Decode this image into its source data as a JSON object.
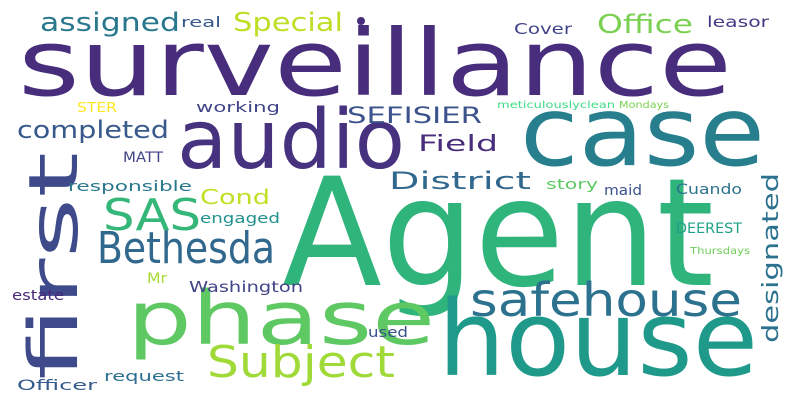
{
  "words": [
    {
      "text": "surveillance",
      "color": "#472d7b"
    },
    {
      "text": "Agent",
      "color": "#2fb47c"
    },
    {
      "text": "case",
      "color": "#277f8e"
    },
    {
      "text": "house",
      "color": "#1f9a8a"
    },
    {
      "text": "audio",
      "color": "#46327e"
    },
    {
      "text": "phase",
      "color": "#5ec962"
    },
    {
      "text": "first",
      "color": "#3e4a89"
    },
    {
      "text": "safehouse",
      "color": "#2c728e"
    },
    {
      "text": "Bethesda",
      "color": "#31688e"
    },
    {
      "text": "Subject",
      "color": "#a0da39"
    },
    {
      "text": "SAS",
      "color": "#35b779"
    },
    {
      "text": "assigned",
      "color": "#2a788e"
    },
    {
      "text": "Special",
      "color": "#bddf26"
    },
    {
      "text": "Office",
      "color": "#7ad151"
    },
    {
      "text": "completed",
      "color": "#38598c"
    },
    {
      "text": "SEFISIER",
      "color": "#3b528b"
    },
    {
      "text": "Field",
      "color": "#472d7b"
    },
    {
      "text": "District",
      "color": "#31688e"
    },
    {
      "text": "designated",
      "color": "#2c728e"
    },
    {
      "text": "Cond",
      "color": "#c2df23"
    },
    {
      "text": "Washington",
      "color": "#414487"
    },
    {
      "text": "Cover",
      "color": "#414487"
    },
    {
      "text": "leasor",
      "color": "#443983"
    },
    {
      "text": "real",
      "color": "#38598c"
    },
    {
      "text": "working",
      "color": "#414487"
    },
    {
      "text": "STER",
      "color": "#fde725"
    },
    {
      "text": "meticulouslyclean",
      "color": "#3ddc85"
    },
    {
      "text": "Mondays",
      "color": "#7ad151"
    },
    {
      "text": "MATT",
      "color": "#414487"
    },
    {
      "text": "responsible",
      "color": "#2a788e"
    },
    {
      "text": "engaged",
      "color": "#21918c"
    },
    {
      "text": "story",
      "color": "#5ec962"
    },
    {
      "text": "maid",
      "color": "#3b528b"
    },
    {
      "text": "Cuando",
      "color": "#2c728e"
    },
    {
      "text": "DEEREST",
      "color": "#1fa187"
    },
    {
      "text": "Thursdays",
      "color": "#6ece58"
    },
    {
      "text": "Mr",
      "color": "#a8db34"
    },
    {
      "text": "estate",
      "color": "#482878"
    },
    {
      "text": "used",
      "color": "#3b528b"
    },
    {
      "text": "request",
      "color": "#2e6e8e"
    },
    {
      "text": "Officer",
      "color": "#365c8d"
    }
  ]
}
